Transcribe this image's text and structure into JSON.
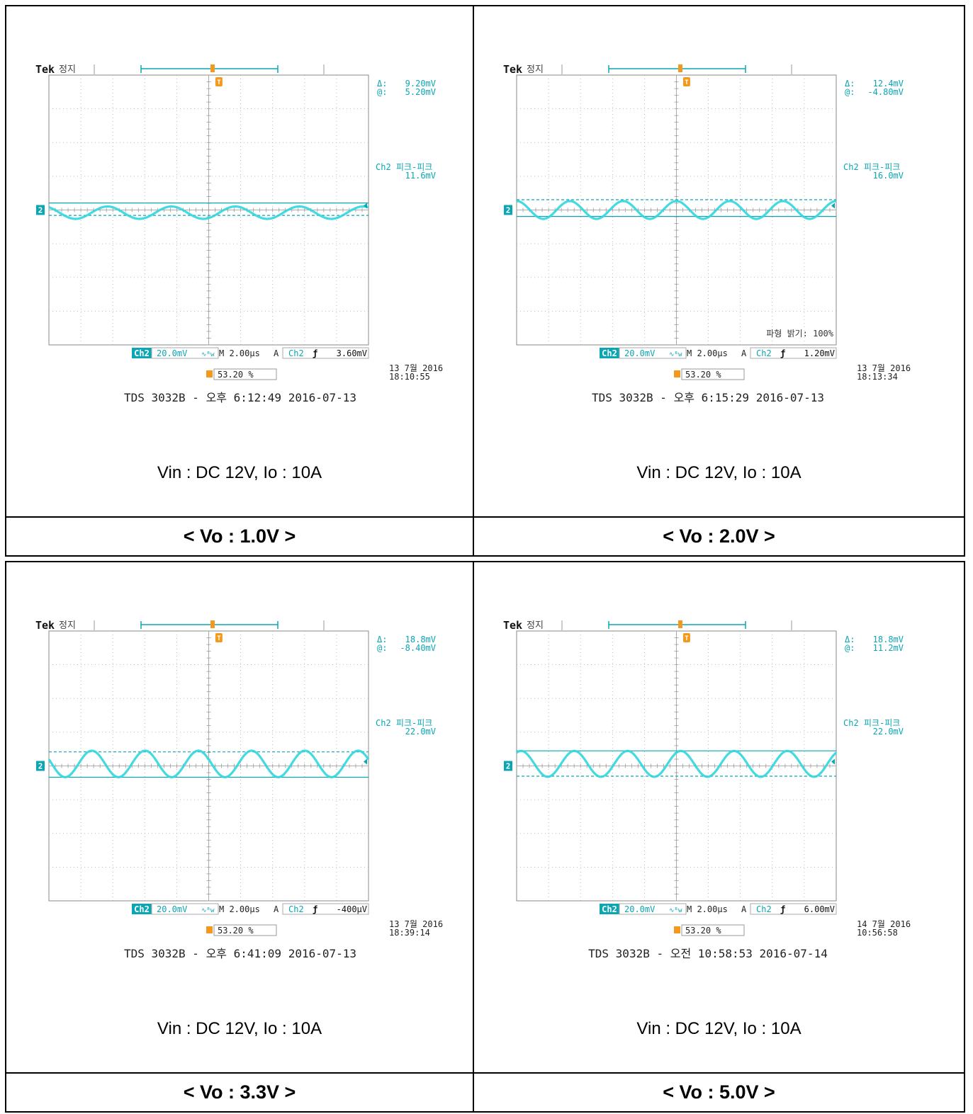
{
  "colors": {
    "trace": "#2fd6de",
    "readout": "#0aa6b4",
    "trigger": "#f39a1e",
    "graticule": "#aaaaaa"
  },
  "panels": [
    {
      "caption": "< Vo : 1.0V >",
      "condition": "Vin : DC 12V, Io : 10A",
      "brand": "Tek",
      "status": "정지",
      "cursor_delta": "9.20mV",
      "cursor_at": "5.20mV",
      "meas_label": "Ch2 피크-피크",
      "meas_value": "11.6mV",
      "brightness": "",
      "ch_tag": "Ch2",
      "volts_div": "20.0mV",
      "bw_icon": "∿ᴮw",
      "timebase": "M 2.00µs",
      "trig_mode": "A",
      "trig_ch": "Ch2",
      "trig_slope": "ƒ",
      "trig_level": "3.60mV",
      "trig_pos": "53.20 %",
      "scope_date": "13 7월  2016",
      "scope_time": "18:10:55",
      "footer": "TDS 3032B - 오후 6:12:49   2016-07-13",
      "ch_marker": "2",
      "trigger_marker": "T",
      "chart_data": {
        "type": "line",
        "waveform": "sine",
        "x_unit": "µs",
        "xlim": [
          0,
          20
        ],
        "x_per_div": 2.0,
        "y_unit": "mV",
        "ylim": [
          -100,
          100
        ],
        "y_per_div": 20.0,
        "offset": -2,
        "amplitude": 4.6,
        "frequency_MHz": 0.25,
        "phase_deg": 120,
        "peak_to_peak_mV": 11.6,
        "cursor_solid_mV": 5.2,
        "cursor_dashed_mV": -4.0
      }
    },
    {
      "caption": "< Vo : 2.0V >",
      "condition": "Vin : DC 12V, Io : 10A",
      "brand": "Tek",
      "status": "정지",
      "cursor_delta": "12.4mV",
      "cursor_at": "-4.80mV",
      "meas_label": "Ch2 피크-피크",
      "meas_value": "16.0mV",
      "brightness": "파형 밝기: 100%",
      "ch_tag": "Ch2",
      "volts_div": "20.0mV",
      "bw_icon": "∿ᴮw",
      "timebase": "M 2.00µs",
      "trig_mode": "A",
      "trig_ch": "Ch2",
      "trig_slope": "ƒ",
      "trig_level": "1.20mV",
      "trig_pos": "53.20 %",
      "scope_date": "13 7월  2016",
      "scope_time": "18:13:34",
      "footer": "TDS 3032B - 오후 6:15:29   2016-07-13",
      "ch_marker": "2",
      "trigger_marker": "T",
      "chart_data": {
        "type": "line",
        "waveform": "sine",
        "x_unit": "µs",
        "xlim": [
          0,
          20
        ],
        "x_per_div": 2.0,
        "y_unit": "mV",
        "ylim": [
          -100,
          100
        ],
        "y_per_div": 20.0,
        "offset": 0,
        "amplitude": 6.6,
        "frequency_MHz": 0.3,
        "phase_deg": 90,
        "peak_to_peak_mV": 16.0,
        "cursor_solid_mV": -4.8,
        "cursor_dashed_mV": 7.6
      }
    },
    {
      "caption": "< Vo : 3.3V >",
      "condition": "Vin : DC 12V, Io : 10A",
      "brand": "Tek",
      "status": "정지",
      "cursor_delta": "18.8mV",
      "cursor_at": "-8.40mV",
      "meas_label": "Ch2 피크-피크",
      "meas_value": "22.0mV",
      "brightness": "",
      "ch_tag": "Ch2",
      "volts_div": "20.0mV",
      "bw_icon": "∿ᴮw",
      "timebase": "M 2.00µs",
      "trig_mode": "A",
      "trig_ch": "Ch2",
      "trig_slope": "ƒ",
      "trig_level": "-400µV",
      "trig_pos": "53.20 %",
      "scope_date": "13 7월  2016",
      "scope_time": "18:39:14",
      "footer": "TDS 3032B - 오후 6:41:09   2016-07-13",
      "ch_marker": "2",
      "trigger_marker": "T",
      "chart_data": {
        "type": "line",
        "waveform": "sine",
        "x_unit": "µs",
        "xlim": [
          0,
          20
        ],
        "x_per_div": 2.0,
        "y_unit": "mV",
        "ylim": [
          -100,
          100
        ],
        "y_per_div": 20.0,
        "offset": 1.5,
        "amplitude": 9.8,
        "frequency_MHz": 0.3,
        "phase_deg": 160,
        "peak_to_peak_mV": 22.0,
        "cursor_solid_mV": -8.4,
        "cursor_dashed_mV": 10.4
      }
    },
    {
      "caption": "< Vo : 5.0V >",
      "condition": "Vin : DC 12V, Io : 10A",
      "brand": "Tek",
      "status": "정지",
      "cursor_delta": "18.8mV",
      "cursor_at": "11.2mV",
      "meas_label": "Ch2 피크-피크",
      "meas_value": "22.0mV",
      "brightness": "",
      "ch_tag": "Ch2",
      "volts_div": "20.0mV",
      "bw_icon": "∿ᴮw",
      "timebase": "M 2.00µs",
      "trig_mode": "A",
      "trig_ch": "Ch2",
      "trig_slope": "ƒ",
      "trig_level": "6.00mV",
      "trig_pos": "53.20 %",
      "scope_date": "14 7월  2016",
      "scope_time": "10:56:58",
      "footer": "TDS 3032B - 오전 10:58:53   2016-07-14",
      "ch_marker": "2",
      "trigger_marker": "T",
      "chart_data": {
        "type": "line",
        "waveform": "sine",
        "x_unit": "µs",
        "xlim": [
          0,
          20
        ],
        "x_per_div": 2.0,
        "y_unit": "mV",
        "ylim": [
          -100,
          100
        ],
        "y_per_div": 20.0,
        "offset": 1.5,
        "amplitude": 9.6,
        "frequency_MHz": 0.3,
        "phase_deg": 60,
        "peak_to_peak_mV": 22.0,
        "cursor_solid_mV": 11.2,
        "cursor_dashed_mV": -7.6
      }
    }
  ]
}
